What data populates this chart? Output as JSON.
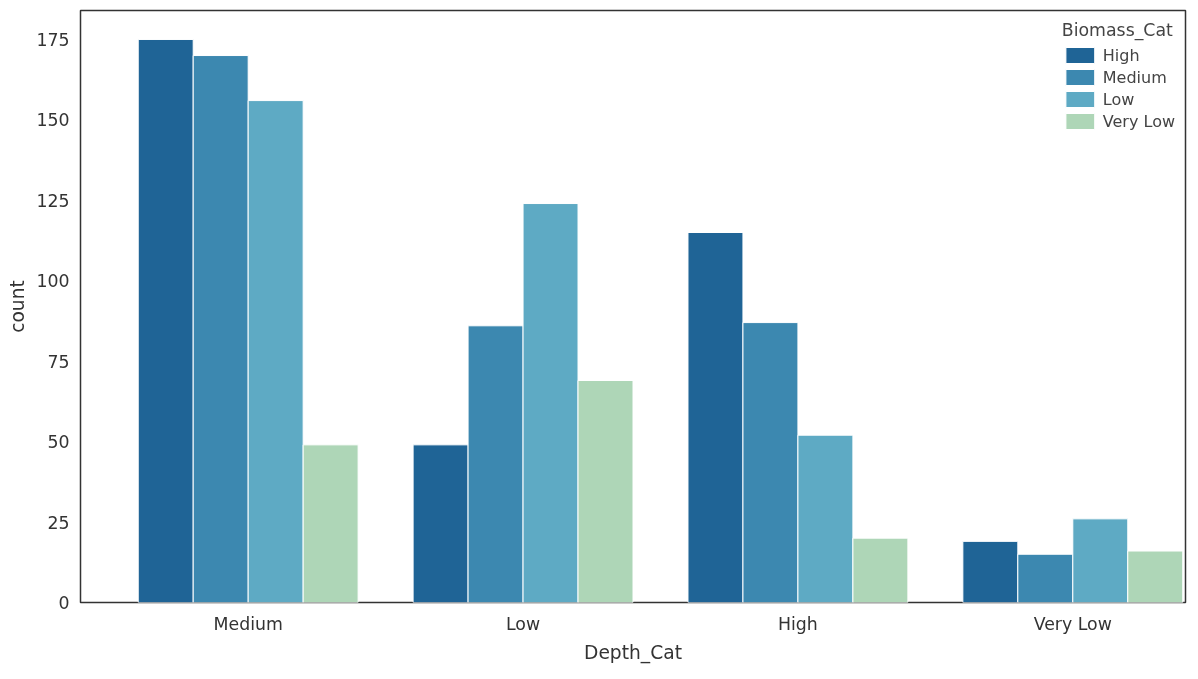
{
  "chart_data": {
    "type": "bar",
    "xlabel": "Depth_Cat",
    "ylabel": "count",
    "legend_title": "Biomass_Cat",
    "categories": [
      "Medium",
      "Low",
      "High",
      "Very Low"
    ],
    "series": [
      {
        "name": "High",
        "color": "#1f6496",
        "values": [
          175,
          49,
          115,
          19
        ]
      },
      {
        "name": "Medium",
        "color": "#3c88b0",
        "values": [
          170,
          86,
          87,
          15
        ]
      },
      {
        "name": "Low",
        "color": "#5eaac4",
        "values": [
          156,
          124,
          52,
          26
        ]
      },
      {
        "name": "Very Low",
        "color": "#aed6b7",
        "values": [
          49,
          69,
          20,
          16
        ]
      }
    ],
    "ylim": [
      0,
      184
    ],
    "yticks": [
      0,
      25,
      50,
      75,
      100,
      125,
      150,
      175
    ],
    "grid": false,
    "legend": "top right"
  }
}
